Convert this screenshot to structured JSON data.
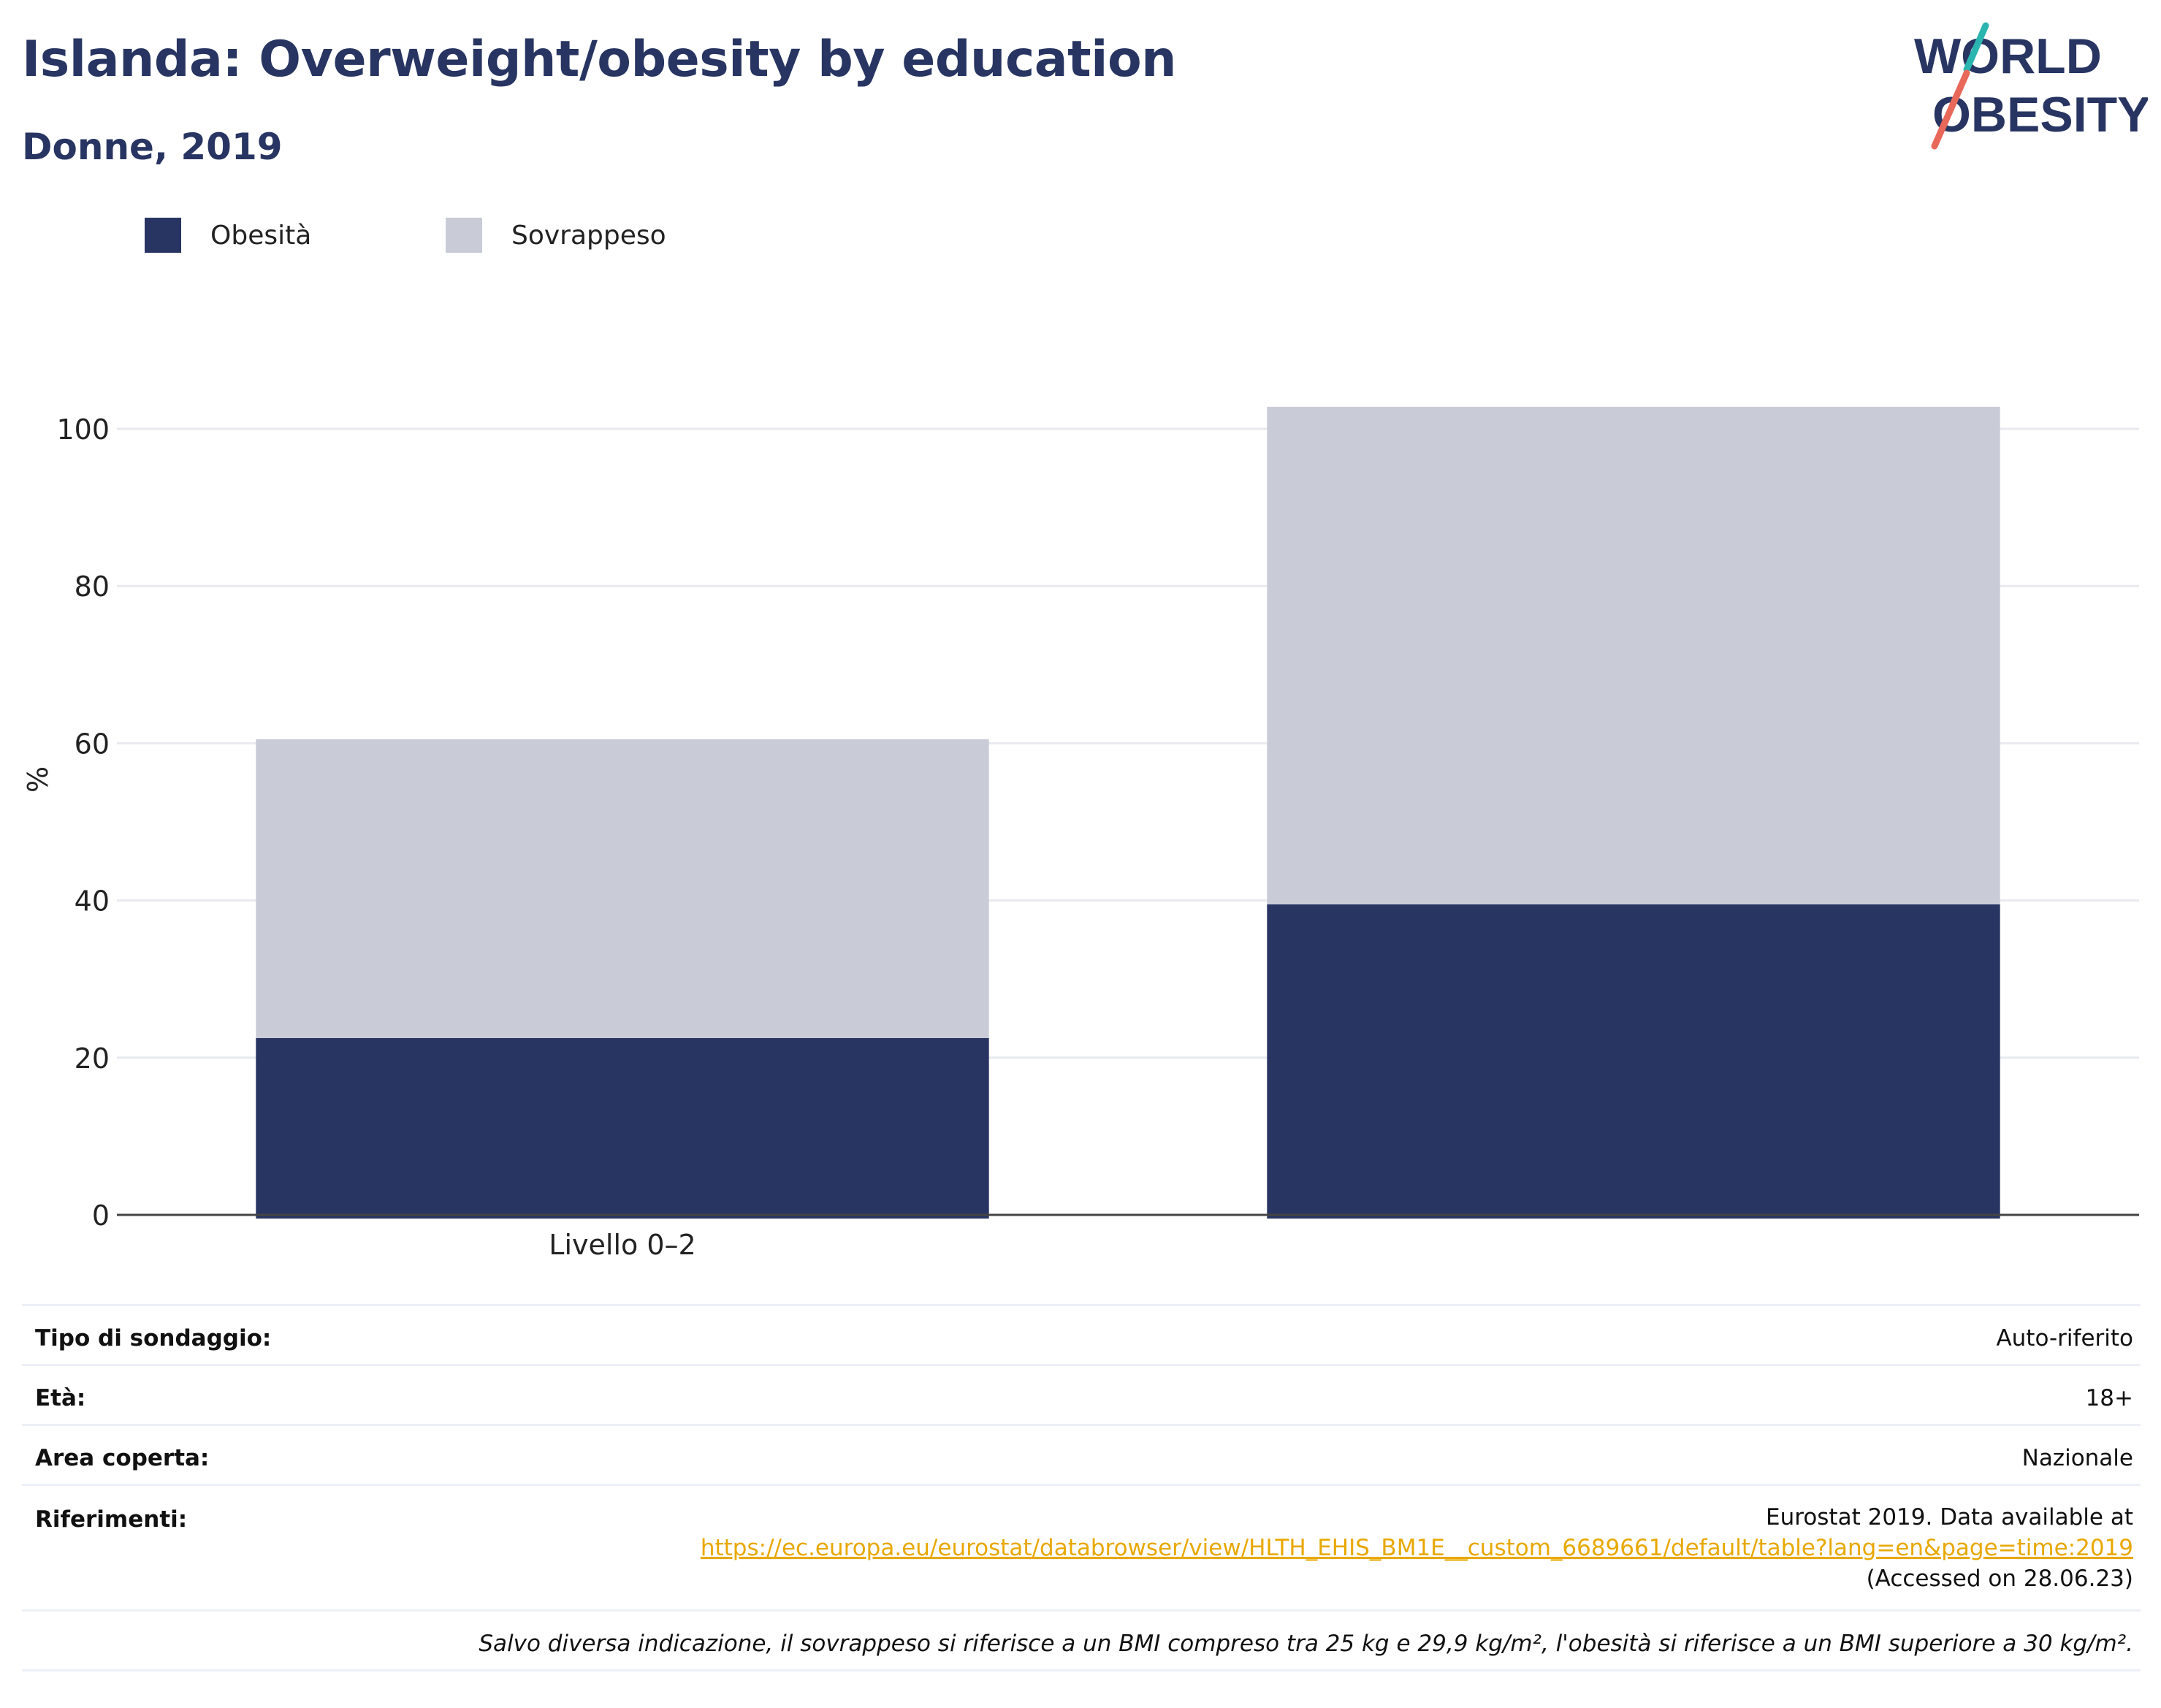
{
  "header": {
    "title": "Islanda: Overweight/obesity by education",
    "subtitle": "Donne, 2019"
  },
  "logo": {
    "line1": "WORLD",
    "line2": "OBESITY",
    "icon": "world-obesity-logo"
  },
  "legend": [
    {
      "label": "Obesità",
      "color": "#283562"
    },
    {
      "label": "Sovrappeso",
      "color": "#c9ccd7"
    }
  ],
  "chart_data": {
    "type": "bar",
    "stacked": true,
    "categories": [
      "Livello 0–2",
      ""
    ],
    "series": [
      {
        "name": "Obesità",
        "values": [
          22.5,
          39.5
        ],
        "color": "#283562"
      },
      {
        "name": "Sovrappeso",
        "values": [
          38,
          63.3
        ],
        "color": "#c9ccd7"
      }
    ],
    "ylabel": "%",
    "ylim": [
      0,
      100
    ],
    "yticks": [
      0,
      20,
      40,
      60,
      80,
      100
    ],
    "grid": true,
    "legend_position": "top-left"
  },
  "info": {
    "rows": [
      {
        "label": "Tipo di sondaggio:",
        "value": "Auto-riferito"
      },
      {
        "label": "Età:",
        "value": "18+"
      },
      {
        "label": "Area coperta:",
        "value": "Nazionale"
      }
    ],
    "references": {
      "label": "Riferimenti:",
      "line1": "Eurostat 2019. Data available at",
      "link": "https://ec.europa.eu/eurostat/databrowser/view/HLTH_EHIS_BM1E__custom_6689661/default/table?lang=en&page=time:2019",
      "line3": "(Accessed on 28.06.23)"
    },
    "note": "Salvo diversa indicazione, il sovrappeso si riferisce a un BMI compreso tra 25 kg e 29,9 kg/m², l'obesità si riferisce a un BMI superiore a 30 kg/m²."
  }
}
